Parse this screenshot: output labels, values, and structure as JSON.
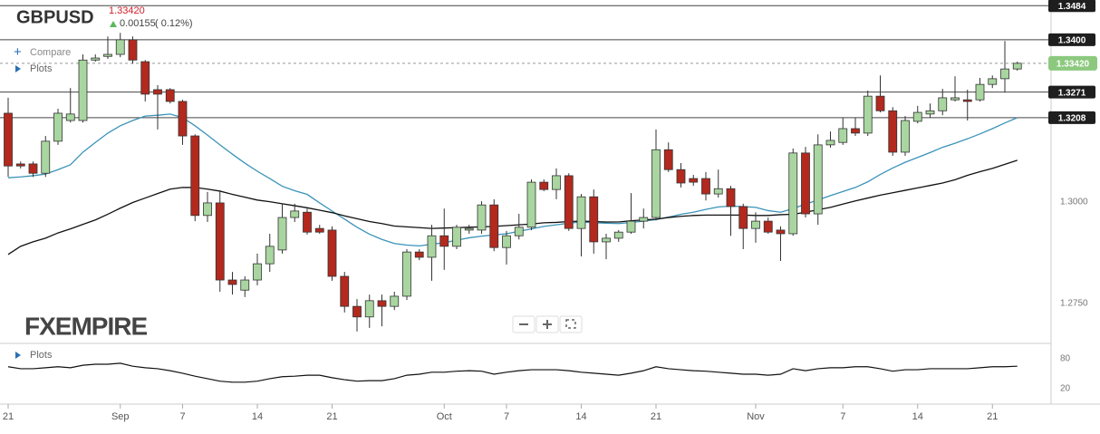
{
  "header": {
    "symbol": "GBPUSD",
    "change": "0.00155",
    "change_pct": "( 0.12%)",
    "compare": "Compare",
    "plots": "Plots",
    "logo": "FXEMPIRE"
  },
  "chart_data": [
    {
      "type": "candlestick",
      "categories": [
        "21",
        null,
        null,
        null,
        null,
        null,
        null,
        null,
        null,
        "Sep",
        null,
        null,
        null,
        null,
        "7",
        null,
        null,
        null,
        null,
        null,
        "14",
        null,
        null,
        null,
        null,
        null,
        "21",
        null,
        null,
        null,
        null,
        null,
        null,
        null,
        null,
        "Oct",
        null,
        null,
        null,
        null,
        "7",
        null,
        null,
        null,
        null,
        null,
        "14",
        null,
        null,
        null,
        null,
        null,
        "21",
        null,
        null,
        null,
        null,
        null,
        null,
        null,
        "Nov",
        null,
        null,
        null,
        null,
        null,
        null,
        "7",
        null,
        null,
        null,
        null,
        null,
        "14",
        null,
        null,
        null,
        null,
        null,
        "21",
        null,
        null
      ],
      "open": [
        1.3219,
        1.3094,
        1.3094,
        1.3071,
        1.315,
        1.3201,
        1.3201,
        1.335,
        1.3359,
        1.3364,
        1.34,
        1.3346,
        1.3277,
        1.3277,
        1.3248,
        1.3163,
        1.2967,
        1.2998,
        1.2808,
        1.2783,
        1.2808,
        1.2848,
        1.2882,
        1.2962,
        1.2975,
        1.2935,
        1.2931,
        1.2817,
        1.2743,
        1.2717,
        1.2757,
        1.2743,
        1.2768,
        1.2877,
        1.2864,
        1.2917,
        1.2891,
        1.2931,
        1.2931,
        1.2993,
        1.2888,
        1.2917,
        1.2938,
        1.3049,
        1.3031,
        1.3065,
        1.2935,
        1.3013,
        1.2902,
        1.2911,
        1.2926,
        1.2953,
        1.2962,
        1.3129,
        1.308,
        1.3058,
        1.3058,
        1.302,
        1.3033,
        1.2989,
        1.2935,
        1.2953,
        1.2931,
        1.2922,
        1.3121,
        1.2971,
        1.3141,
        1.3147,
        1.3181,
        1.317,
        1.3261,
        1.3225,
        1.3123,
        1.3199,
        1.3217,
        1.3225,
        1.3252,
        1.3252,
        1.3252,
        1.329,
        1.3304,
        1.3328
      ],
      "high": [
        1.3257,
        1.31,
        1.31,
        1.3163,
        1.323,
        1.3281,
        1.3364,
        1.3364,
        1.3408,
        1.3417,
        1.3408,
        1.335,
        1.3288,
        1.3281,
        1.3252,
        1.3167,
        1.3025,
        1.3029,
        1.2828,
        1.2817,
        1.2873,
        1.2922,
        1.2996,
        1.2996,
        1.2984,
        1.2944,
        1.294,
        1.2828,
        1.2761,
        1.2772,
        1.2772,
        1.2779,
        1.2884,
        1.2884,
        1.2944,
        1.2984,
        1.2944,
        1.2944,
        1.3002,
        1.3007,
        1.2929,
        1.2971,
        1.3056,
        1.3056,
        1.3083,
        1.3071,
        1.302,
        1.3031,
        1.2922,
        1.2931,
        1.3022,
        1.2984,
        1.3179,
        1.3147,
        1.3096,
        1.3067,
        1.3074,
        1.308,
        1.304,
        1.2996,
        1.2975,
        1.2962,
        1.294,
        1.3132,
        1.3136,
        1.3167,
        1.3174,
        1.3208,
        1.3208,
        1.3275,
        1.3312,
        1.3234,
        1.3212,
        1.3237,
        1.3243,
        1.3279,
        1.331,
        1.3277,
        1.3306,
        1.3312,
        1.3397,
        1.3346
      ],
      "low": [
        1.3062,
        1.3083,
        1.3062,
        1.3062,
        1.3141,
        1.3196,
        1.3196,
        1.3346,
        1.3353,
        1.3357,
        1.3341,
        1.3248,
        1.3179,
        1.3243,
        1.3141,
        1.2953,
        1.2951,
        1.2779,
        1.2772,
        1.2766,
        1.2795,
        1.2828,
        1.2873,
        1.2951,
        1.292,
        1.2922,
        1.2806,
        1.2728,
        1.2681,
        1.269,
        1.2694,
        1.2734,
        1.2759,
        1.2857,
        1.2806,
        1.2833,
        1.2884,
        1.2922,
        1.2922,
        1.2879,
        1.2846,
        1.2908,
        1.2931,
        1.3027,
        1.3007,
        1.2929,
        1.2866,
        1.2873,
        1.2859,
        1.2902,
        1.2922,
        1.2935,
        1.2955,
        1.3074,
        1.3036,
        1.304,
        1.3004,
        1.3011,
        1.2917,
        1.2884,
        1.29,
        1.2922,
        1.2855,
        1.2917,
        1.2962,
        1.2944,
        1.3134,
        1.3141,
        1.3163,
        1.3163,
        1.3221,
        1.3114,
        1.3114,
        1.3194,
        1.3208,
        1.3214,
        1.3248,
        1.3201,
        1.3248,
        1.3281,
        1.327,
        1.3324
      ],
      "close": [
        1.3089,
        1.3089,
        1.3071,
        1.315,
        1.3219,
        1.3217,
        1.335,
        1.3355,
        1.3364,
        1.34,
        1.335,
        1.3266,
        1.3266,
        1.3248,
        1.3163,
        1.2967,
        1.2998,
        1.2808,
        1.2797,
        1.2808,
        1.2848,
        1.2891,
        1.2962,
        1.2978,
        1.2926,
        1.2926,
        1.2817,
        1.2743,
        1.2717,
        1.2757,
        1.2743,
        1.2768,
        1.2877,
        1.2864,
        1.2917,
        1.2891,
        1.2938,
        1.2935,
        1.2993,
        1.2888,
        1.2917,
        1.2938,
        1.3049,
        1.3031,
        1.3065,
        1.2935,
        1.3013,
        1.2902,
        1.2911,
        1.2926,
        1.2953,
        1.2962,
        1.3129,
        1.308,
        1.3047,
        1.3049,
        1.302,
        1.3033,
        1.2989,
        1.2935,
        1.2953,
        1.2926,
        1.2922,
        1.3121,
        1.2971,
        1.3141,
        1.3152,
        1.3181,
        1.317,
        1.3261,
        1.3225,
        1.3123,
        1.3201,
        1.3221,
        1.3225,
        1.3257,
        1.3257,
        1.3248,
        1.329,
        1.3304,
        1.3328,
        1.3342
      ],
      "up_color": "#a9d6a0",
      "down_color": "#b3291e",
      "series": [
        {
          "color": "#3a93b8",
          "values": [
            1.306,
            1.3062,
            1.3065,
            1.3069,
            1.308,
            1.3092,
            1.3123,
            1.3147,
            1.317,
            1.3188,
            1.3201,
            1.3212,
            1.3214,
            1.3217,
            1.3208,
            1.3188,
            1.3165,
            1.3141,
            1.3118,
            1.3096,
            1.3076,
            1.3058,
            1.3039,
            1.3028,
            1.3019,
            1.2998,
            1.2978,
            1.2958,
            1.2938,
            1.2921,
            1.2908,
            1.2898,
            1.2894,
            1.2892,
            1.2896,
            1.29,
            1.2906,
            1.2912,
            1.2916,
            1.2919,
            1.2922,
            1.2928,
            1.2934,
            1.294,
            1.2944,
            1.2948,
            1.2951,
            1.2949,
            1.2948,
            1.2947,
            1.295,
            1.2953,
            1.2957,
            1.2963,
            1.297,
            1.2975,
            1.2982,
            1.2988,
            1.299,
            1.2989,
            1.2987,
            1.2979,
            1.2975,
            1.2984,
            1.2995,
            1.3005,
            1.3016,
            1.3026,
            1.3036,
            1.305,
            1.3068,
            1.3084,
            1.3098,
            1.311,
            1.3122,
            1.3135,
            1.3145,
            1.3156,
            1.3168,
            1.3181,
            1.3195,
            1.3208
          ]
        },
        {
          "color": "#111111",
          "values": [
            1.2871,
            1.2891,
            1.2902,
            1.2911,
            1.2924,
            1.2934,
            1.2945,
            1.2956,
            1.297,
            1.2985,
            1.2999,
            1.301,
            1.3021,
            1.3032,
            1.3036,
            1.3036,
            1.3032,
            1.3027,
            1.3019,
            1.3012,
            1.3005,
            1.3001,
            1.2996,
            1.2991,
            1.2986,
            1.298,
            1.2974,
            1.2966,
            1.2959,
            1.2952,
            1.2947,
            1.2941,
            1.2939,
            1.2937,
            1.2935,
            1.2936,
            1.2937,
            1.2938,
            1.2939,
            1.294,
            1.2942,
            1.2944,
            1.2946,
            1.2949,
            1.295,
            1.2952,
            1.2953,
            1.2952,
            1.2951,
            1.2951,
            1.2954,
            1.2956,
            1.2958,
            1.2962,
            1.2965,
            1.2967,
            1.2968,
            1.2968,
            1.2968,
            1.2968,
            1.2967,
            1.2967,
            1.2969,
            1.297,
            1.2975,
            1.2981,
            1.2987,
            1.2995,
            1.3003,
            1.301,
            1.3017,
            1.3023,
            1.3029,
            1.3035,
            1.3041,
            1.3047,
            1.3055,
            1.3066,
            1.3075,
            1.3083,
            1.3093,
            1.3103
          ]
        }
      ],
      "ylim": [
        1.2654,
        1.3498
      ],
      "yticks": [
        {
          "value": 1.275,
          "label": "1.2750"
        },
        {
          "value": 1.3,
          "label": "1.3000"
        }
      ],
      "price_lines": [
        1.3484,
        {
          "value": 1.34,
          "label": "1.3400"
        },
        1.3271,
        1.3208
      ],
      "last_price": {
        "value": 1.3342,
        "label": "1.33420",
        "color": "#8cc97f"
      }
    },
    {
      "type": "line",
      "title": "Plots",
      "color": "#111111",
      "values": [
        64,
        60,
        60,
        62,
        64,
        62,
        67,
        69,
        69,
        71,
        65,
        62,
        60,
        56,
        51,
        45,
        40,
        35,
        33,
        33,
        35,
        40,
        44,
        45,
        47,
        47,
        42,
        38,
        35,
        36,
        36,
        40,
        47,
        49,
        53,
        53,
        55,
        56,
        55,
        49,
        53,
        56,
        58,
        58,
        58,
        56,
        53,
        51,
        49,
        47,
        51,
        56,
        64,
        60,
        58,
        56,
        55,
        53,
        51,
        49,
        49,
        47,
        49,
        60,
        56,
        60,
        62,
        62,
        64,
        64,
        60,
        55,
        58,
        58,
        60,
        60,
        60,
        60,
        62,
        64,
        64,
        65
      ],
      "ylim": [
        -11,
        109
      ],
      "yticks": [
        20,
        80
      ]
    }
  ]
}
